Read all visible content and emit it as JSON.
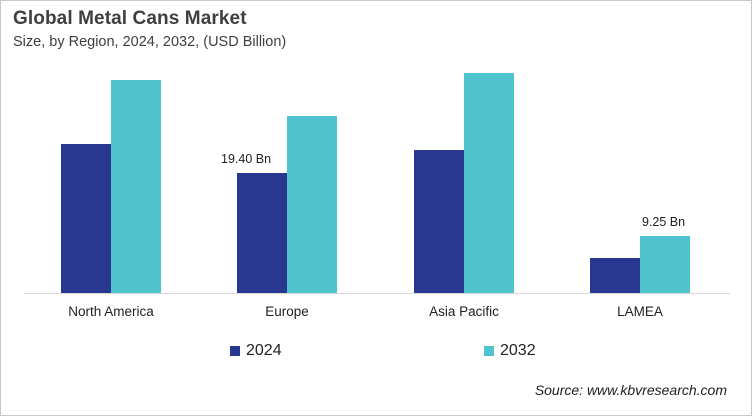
{
  "header": {
    "title": "Global Metal Cans Market",
    "subtitle": "Size, by Region, 2024, 2032, (USD Billion)"
  },
  "colors": {
    "2024": "#283891",
    "2032": "#4fc4cf",
    "axis": "#d9d9d9"
  },
  "legend": [
    {
      "label": "2024",
      "color": "#283891"
    },
    {
      "label": "2032",
      "color": "#4fc4cf"
    }
  ],
  "annotations": {
    "europe_2024": "19.40  Bn",
    "lamea_2032": "9.25 Bn"
  },
  "source": "Source: www.kbvresearch.com",
  "chart_data": {
    "type": "bar",
    "title": "Global Metal Cans Market",
    "subtitle": "Size, by Region, 2024, 2032, (USD Billion)",
    "xlabel": "",
    "ylabel": "USD Billion",
    "categories": [
      "North America",
      "Europe",
      "Asia Pacific",
      "LAMEA"
    ],
    "series": [
      {
        "name": "2024",
        "values": [
          24.1,
          19.4,
          23.1,
          5.7
        ]
      },
      {
        "name": "2032",
        "values": [
          34.5,
          28.6,
          35.6,
          9.25
        ]
      }
    ],
    "data_labels": [
      {
        "category": "Europe",
        "series": "2024",
        "text": "19.40  Bn"
      },
      {
        "category": "LAMEA",
        "series": "2032",
        "text": "9.25 Bn"
      }
    ],
    "ylim": [
      0,
      40
    ],
    "grid": false,
    "y_axis_visible": false,
    "legend_position": "bottom"
  }
}
